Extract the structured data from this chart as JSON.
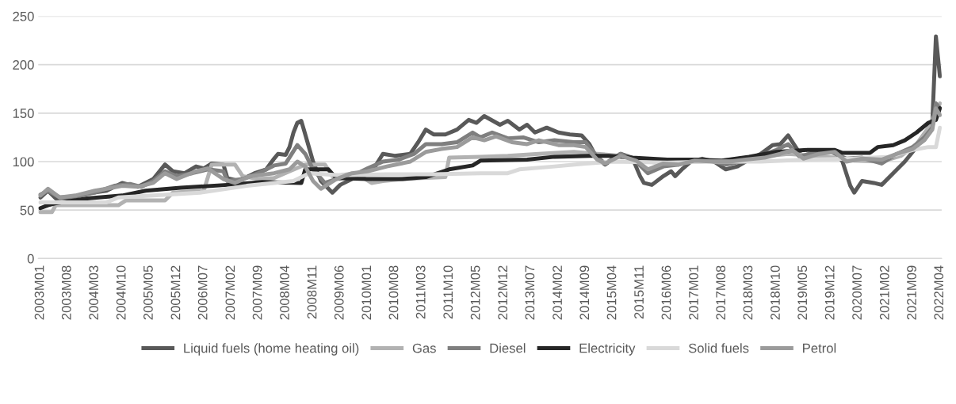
{
  "chart_data": {
    "type": "line",
    "xlim": [
      "2002-12-15",
      "2022-04-15"
    ],
    "xticks": [
      {
        "value": "2003-01",
        "label": "2003M01"
      },
      {
        "value": "2003-08",
        "label": "2003M08"
      },
      {
        "value": "2004-03",
        "label": "2004M03"
      },
      {
        "value": "2004-10",
        "label": "2004M10"
      },
      {
        "value": "2005-05",
        "label": "2005M05"
      },
      {
        "value": "2005-12",
        "label": "2005M12"
      },
      {
        "value": "2006-07",
        "label": "2006M07"
      },
      {
        "value": "2007-02",
        "label": "2007M02"
      },
      {
        "value": "2007-09",
        "label": "2007M09"
      },
      {
        "value": "2008-04",
        "label": "2008M04"
      },
      {
        "value": "2008-11",
        "label": "2008M11"
      },
      {
        "value": "2009-06",
        "label": "2009M06"
      },
      {
        "value": "2010-01",
        "label": "2010M01"
      },
      {
        "value": "2010-08",
        "label": "2010M08"
      },
      {
        "value": "2011-03",
        "label": "2011M03"
      },
      {
        "value": "2011-10",
        "label": "2011M10"
      },
      {
        "value": "2012-05",
        "label": "2012M05"
      },
      {
        "value": "2012-12",
        "label": "2012M12"
      },
      {
        "value": "2013-07",
        "label": "2013M07"
      },
      {
        "value": "2014-02",
        "label": "2014M02"
      },
      {
        "value": "2014-09",
        "label": "2014M09"
      },
      {
        "value": "2015-04",
        "label": "2015M04"
      },
      {
        "value": "2015-11",
        "label": "2015M11"
      },
      {
        "value": "2016-06",
        "label": "2016M06"
      },
      {
        "value": "2017-01",
        "label": "2017M01"
      },
      {
        "value": "2017-08",
        "label": "2017M08"
      },
      {
        "value": "2018-03",
        "label": "2018M03"
      },
      {
        "value": "2018-10",
        "label": "2018M10"
      },
      {
        "value": "2019-05",
        "label": "2019M05"
      },
      {
        "value": "2019-12",
        "label": "2019M12"
      },
      {
        "value": "2020-07",
        "label": "2020M07"
      },
      {
        "value": "2021-02",
        "label": "2021M02"
      },
      {
        "value": "2021-09",
        "label": "2021M09"
      },
      {
        "value": "2022-04",
        "label": "2022M04"
      }
    ],
    "ylim": [
      0,
      250
    ],
    "yticks": [
      0,
      50,
      100,
      150,
      200,
      250
    ],
    "grid": "y",
    "legend": "bottom",
    "marker": "none",
    "line_style": "solid",
    "series": [
      {
        "name": "Liquid fuels (home heating oil)",
        "color": "#595959",
        "x": [
          "2003-01",
          "2003-03",
          "2003-05",
          "2003-09",
          "2004-01",
          "2004-06",
          "2004-10",
          "2005-02",
          "2005-06",
          "2005-09",
          "2005-11",
          "2006-02",
          "2006-05",
          "2006-07",
          "2006-09",
          "2006-12",
          "2007-01",
          "2007-04",
          "2007-08",
          "2007-11",
          "2008-01",
          "2008-02",
          "2008-04",
          "2008-05",
          "2008-06",
          "2008-07",
          "2008-08",
          "2008-09",
          "2008-11",
          "2009-01",
          "2009-04",
          "2009-06",
          "2009-09",
          "2009-12",
          "2010-03",
          "2010-05",
          "2010-08",
          "2010-12",
          "2011-02",
          "2011-04",
          "2011-06",
          "2011-09",
          "2011-12",
          "2012-03",
          "2012-05",
          "2012-07",
          "2012-11",
          "2013-01",
          "2013-04",
          "2013-06",
          "2013-08",
          "2013-11",
          "2014-02",
          "2014-05",
          "2014-08",
          "2014-10",
          "2014-12",
          "2015-02",
          "2015-06",
          "2015-09",
          "2015-11",
          "2015-12",
          "2016-02",
          "2016-05",
          "2016-07",
          "2016-08",
          "2016-10",
          "2016-12",
          "2017-03",
          "2017-06",
          "2017-09",
          "2017-12",
          "2018-03",
          "2018-06",
          "2018-09",
          "2018-11",
          "2019-01",
          "2019-03",
          "2019-05",
          "2019-08",
          "2019-10",
          "2020-01",
          "2020-03",
          "2020-05",
          "2020-06",
          "2020-08",
          "2020-11",
          "2021-01",
          "2021-04",
          "2021-07",
          "2021-10",
          "2021-12",
          "2022-01",
          "2022-02",
          "2022-03",
          "2022-04"
        ],
        "values": [
          63,
          70,
          62,
          63,
          67,
          70,
          78,
          74,
          82,
          97,
          90,
          88,
          95,
          93,
          98,
          97,
          83,
          80,
          88,
          92,
          103,
          108,
          107,
          115,
          130,
          140,
          142,
          128,
          100,
          80,
          68,
          76,
          82,
          88,
          95,
          108,
          106,
          108,
          120,
          133,
          128,
          128,
          133,
          143,
          140,
          147,
          138,
          142,
          133,
          138,
          130,
          135,
          130,
          128,
          127,
          118,
          103,
          97,
          108,
          104,
          85,
          78,
          76,
          85,
          90,
          85,
          93,
          100,
          103,
          100,
          92,
          95,
          102,
          108,
          117,
          118,
          127,
          115,
          103,
          110,
          111,
          110,
          100,
          75,
          68,
          80,
          78,
          76,
          88,
          100,
          115,
          128,
          130,
          140,
          229,
          188
        ]
      },
      {
        "name": "Gas",
        "color": "#b2b2b2",
        "x": [
          "2003-01",
          "2003-04",
          "2003-05",
          "2004-09",
          "2004-11",
          "2005-09",
          "2005-11",
          "2006-07",
          "2006-09",
          "2007-03",
          "2007-05",
          "2007-09",
          "2008-01",
          "2008-05",
          "2008-09",
          "2009-02",
          "2009-04",
          "2009-10",
          "2010-02",
          "2010-05",
          "2010-10",
          "2011-03",
          "2011-09",
          "2011-10",
          "2012-06",
          "2013-01",
          "2013-09",
          "2014-06",
          "2014-12",
          "2015-06",
          "2016-01",
          "2016-06",
          "2017-01",
          "2017-08",
          "2018-06",
          "2019-01",
          "2019-08",
          "2020-01",
          "2020-06",
          "2021-01",
          "2021-06",
          "2021-10",
          "2022-01",
          "2022-04"
        ],
        "values": [
          48,
          48,
          55,
          55,
          60,
          60,
          68,
          70,
          97,
          97,
          85,
          82,
          83,
          90,
          97,
          97,
          85,
          88,
          78,
          80,
          82,
          83,
          84,
          104,
          105,
          106,
          108,
          110,
          108,
          106,
          100,
          98,
          100,
          101,
          105,
          108,
          106,
          104,
          101,
          100,
          106,
          118,
          135,
          160
        ]
      },
      {
        "name": "Diesel",
        "color": "#7f7f7f",
        "x": [
          "2003-01",
          "2003-03",
          "2003-06",
          "2003-10",
          "2004-03",
          "2004-08",
          "2004-12",
          "2005-03",
          "2005-06",
          "2005-09",
          "2005-12",
          "2006-04",
          "2006-08",
          "2006-12",
          "2007-01",
          "2007-05",
          "2007-09",
          "2008-01",
          "2008-04",
          "2008-07",
          "2008-09",
          "2008-11",
          "2009-02",
          "2009-05",
          "2009-09",
          "2010-01",
          "2010-05",
          "2010-09",
          "2011-01",
          "2011-04",
          "2011-08",
          "2011-12",
          "2012-04",
          "2012-06",
          "2012-09",
          "2013-01",
          "2013-05",
          "2013-09",
          "2014-01",
          "2014-06",
          "2014-09",
          "2014-12",
          "2015-02",
          "2015-06",
          "2015-10",
          "2016-01",
          "2016-05",
          "2016-09",
          "2017-01",
          "2017-06",
          "2017-09",
          "2018-01",
          "2018-06",
          "2018-10",
          "2019-01",
          "2019-04",
          "2019-08",
          "2019-12",
          "2020-04",
          "2020-08",
          "2021-01",
          "2021-05",
          "2021-09",
          "2021-12",
          "2022-02",
          "2022-03",
          "2022-04"
        ],
        "values": [
          66,
          70,
          63,
          64,
          68,
          75,
          77,
          74,
          80,
          90,
          85,
          88,
          92,
          90,
          80,
          82,
          88,
          96,
          98,
          117,
          108,
          92,
          78,
          82,
          85,
          93,
          100,
          102,
          108,
          118,
          118,
          120,
          130,
          125,
          130,
          124,
          125,
          120,
          122,
          120,
          120,
          105,
          98,
          108,
          100,
          88,
          95,
          97,
          102,
          100,
          97,
          100,
          106,
          112,
          118,
          105,
          110,
          110,
          103,
          104,
          98,
          108,
          115,
          125,
          135,
          160,
          155
        ]
      },
      {
        "name": "Electricity",
        "color": "#262626",
        "x": [
          "2003-01",
          "2003-03",
          "2003-05",
          "2004-01",
          "2004-10",
          "2005-04",
          "2006-01",
          "2007-01",
          "2007-10",
          "2008-08",
          "2008-09",
          "2009-03",
          "2009-05",
          "2010-01",
          "2010-10",
          "2011-04",
          "2011-10",
          "2012-04",
          "2012-06",
          "2013-06",
          "2014-01",
          "2014-10",
          "2015-03",
          "2015-09",
          "2016-06",
          "2017-01",
          "2017-08",
          "2018-03",
          "2018-10",
          "2019-06",
          "2020-01",
          "2020-03",
          "2020-10",
          "2020-12",
          "2021-04",
          "2021-07",
          "2021-10",
          "2022-01",
          "2022-03",
          "2022-04"
        ],
        "values": [
          52,
          55,
          57,
          62,
          65,
          70,
          73,
          76,
          79,
          78,
          92,
          92,
          83,
          82,
          82,
          84,
          92,
          96,
          101,
          102,
          105,
          106,
          106,
          104,
          102,
          102,
          101,
          105,
          110,
          112,
          112,
          109,
          109,
          115,
          117,
          122,
          130,
          140,
          143,
          155
        ]
      },
      {
        "name": "Solid fuels",
        "color": "#d9d9d9",
        "x": [
          "2003-01",
          "2004-06",
          "2004-09",
          "2005-06",
          "2006-06",
          "2007-06",
          "2008-06",
          "2008-10",
          "2009-06",
          "2010-06",
          "2011-06",
          "2012-06",
          "2013-01",
          "2013-04",
          "2014-01",
          "2014-09",
          "2015-04",
          "2016-06",
          "2017-06",
          "2018-06",
          "2019-06",
          "2020-06",
          "2021-03",
          "2021-09",
          "2022-01",
          "2022-03",
          "2022-04"
        ],
        "values": [
          58,
          58,
          63,
          65,
          68,
          75,
          80,
          88,
          86,
          87,
          87,
          88,
          88,
          92,
          95,
          98,
          100,
          99,
          100,
          100,
          102,
          103,
          105,
          112,
          115,
          115,
          135
        ]
      },
      {
        "name": "Petrol",
        "color": "#9b9b9b",
        "x": [
          "2003-01",
          "2003-03",
          "2003-06",
          "2003-10",
          "2004-03",
          "2004-06",
          "2004-10",
          "2005-02",
          "2005-06",
          "2005-09",
          "2005-12",
          "2006-05",
          "2006-08",
          "2006-12",
          "2007-03",
          "2007-07",
          "2008-01",
          "2008-05",
          "2008-07",
          "2008-09",
          "2008-11",
          "2009-01",
          "2009-05",
          "2009-09",
          "2010-01",
          "2010-06",
          "2010-12",
          "2011-04",
          "2011-08",
          "2011-12",
          "2012-04",
          "2012-07",
          "2012-10",
          "2013-02",
          "2013-06",
          "2013-09",
          "2014-02",
          "2014-06",
          "2014-09",
          "2014-12",
          "2015-02",
          "2015-06",
          "2015-10",
          "2016-01",
          "2016-05",
          "2016-09",
          "2017-01",
          "2017-06",
          "2017-10",
          "2018-02",
          "2018-07",
          "2018-11",
          "2019-02",
          "2019-05",
          "2019-09",
          "2020-01",
          "2020-04",
          "2020-08",
          "2021-01",
          "2021-05",
          "2021-09",
          "2021-12",
          "2022-02",
          "2022-03",
          "2022-04"
        ],
        "values": [
          65,
          72,
          63,
          65,
          70,
          72,
          75,
          74,
          78,
          88,
          82,
          90,
          93,
          82,
          78,
          85,
          88,
          92,
          100,
          95,
          80,
          72,
          82,
          88,
          90,
          95,
          100,
          110,
          113,
          115,
          125,
          122,
          126,
          120,
          118,
          122,
          117,
          117,
          115,
          102,
          98,
          106,
          101,
          92,
          98,
          97,
          101,
          100,
          100,
          102,
          104,
          108,
          112,
          103,
          108,
          110,
          100,
          103,
          102,
          108,
          113,
          122,
          133,
          155,
          148
        ]
      }
    ]
  }
}
